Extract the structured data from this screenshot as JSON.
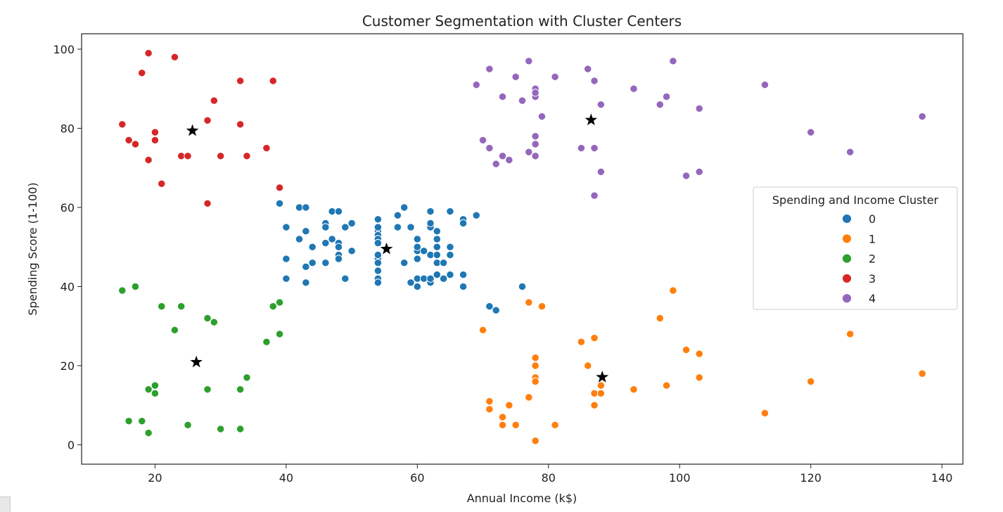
{
  "chart_data": {
    "type": "scatter",
    "title": "Customer Segmentation with Cluster Centers",
    "xlabel": "Annual Income (k$)",
    "ylabel": "Spending Score (1-100)",
    "xlim": [
      8.8,
      143.2
    ],
    "ylim": [
      -4.9,
      103.9
    ],
    "xticks": [
      20,
      40,
      60,
      80,
      100,
      120,
      140
    ],
    "yticks": [
      0,
      20,
      40,
      60,
      80,
      100
    ],
    "grid": false,
    "legend": {
      "title": "Spending and Income Cluster",
      "position": "center-right",
      "entries": [
        "0",
        "1",
        "2",
        "3",
        "4"
      ]
    },
    "series": [
      {
        "name": "0",
        "color": "#1f77b4",
        "points": [
          [
            39,
            61
          ],
          [
            40,
            55
          ],
          [
            40,
            47
          ],
          [
            40,
            42
          ],
          [
            42,
            52
          ],
          [
            42,
            60
          ],
          [
            43,
            60
          ],
          [
            43,
            54
          ],
          [
            43,
            45
          ],
          [
            43,
            41
          ],
          [
            44,
            50
          ],
          [
            44,
            46
          ],
          [
            46,
            51
          ],
          [
            46,
            46
          ],
          [
            46,
            56
          ],
          [
            46,
            55
          ],
          [
            47,
            52
          ],
          [
            47,
            59
          ],
          [
            48,
            51
          ],
          [
            48,
            59
          ],
          [
            48,
            50
          ],
          [
            48,
            48
          ],
          [
            48,
            59
          ],
          [
            48,
            47
          ],
          [
            49,
            55
          ],
          [
            49,
            42
          ],
          [
            50,
            49
          ],
          [
            50,
            56
          ],
          [
            54,
            47
          ],
          [
            54,
            54
          ],
          [
            54,
            53
          ],
          [
            54,
            48
          ],
          [
            54,
            52
          ],
          [
            54,
            42
          ],
          [
            54,
            51
          ],
          [
            54,
            55
          ],
          [
            54,
            41
          ],
          [
            54,
            44
          ],
          [
            54,
            57
          ],
          [
            54,
            46
          ],
          [
            57,
            58
          ],
          [
            57,
            55
          ],
          [
            58,
            60
          ],
          [
            58,
            46
          ],
          [
            59,
            55
          ],
          [
            59,
            41
          ],
          [
            60,
            49
          ],
          [
            60,
            40
          ],
          [
            60,
            42
          ],
          [
            60,
            52
          ],
          [
            60,
            47
          ],
          [
            60,
            50
          ],
          [
            61,
            42
          ],
          [
            61,
            49
          ],
          [
            62,
            41
          ],
          [
            62,
            48
          ],
          [
            62,
            59
          ],
          [
            62,
            55
          ],
          [
            62,
            56
          ],
          [
            62,
            42
          ],
          [
            63,
            50
          ],
          [
            63,
            46
          ],
          [
            63,
            43
          ],
          [
            63,
            48
          ],
          [
            63,
            52
          ],
          [
            63,
            54
          ],
          [
            64,
            42
          ],
          [
            64,
            46
          ],
          [
            65,
            48
          ],
          [
            65,
            50
          ],
          [
            65,
            43
          ],
          [
            65,
            59
          ],
          [
            67,
            43
          ],
          [
            67,
            57
          ],
          [
            67,
            56
          ],
          [
            67,
            40
          ],
          [
            69,
            58
          ],
          [
            71,
            35
          ],
          [
            72,
            34
          ],
          [
            76,
            40
          ]
        ]
      },
      {
        "name": "1",
        "color": "#ff7f0e",
        "points": [
          [
            70,
            29
          ],
          [
            71,
            11
          ],
          [
            71,
            9
          ],
          [
            73,
            5
          ],
          [
            73,
            7
          ],
          [
            74,
            10
          ],
          [
            75,
            5
          ],
          [
            77,
            12
          ],
          [
            77,
            36
          ],
          [
            78,
            22
          ],
          [
            78,
            17
          ],
          [
            78,
            20
          ],
          [
            78,
            16
          ],
          [
            78,
            1
          ],
          [
            78,
            1
          ],
          [
            79,
            35
          ],
          [
            81,
            5
          ],
          [
            85,
            26
          ],
          [
            86,
            20
          ],
          [
            87,
            27
          ],
          [
            87,
            13
          ],
          [
            87,
            10
          ],
          [
            88,
            13
          ],
          [
            88,
            15
          ],
          [
            93,
            14
          ],
          [
            97,
            32
          ],
          [
            98,
            15
          ],
          [
            99,
            39
          ],
          [
            101,
            24
          ],
          [
            103,
            17
          ],
          [
            103,
            23
          ],
          [
            113,
            8
          ],
          [
            120,
            16
          ],
          [
            126,
            28
          ],
          [
            137,
            18
          ]
        ]
      },
      {
        "name": "2",
        "color": "#2ca02c",
        "points": [
          [
            15,
            39
          ],
          [
            16,
            6
          ],
          [
            17,
            40
          ],
          [
            18,
            6
          ],
          [
            19,
            3
          ],
          [
            19,
            14
          ],
          [
            20,
            15
          ],
          [
            20,
            13
          ],
          [
            21,
            35
          ],
          [
            23,
            29
          ],
          [
            24,
            35
          ],
          [
            25,
            5
          ],
          [
            28,
            14
          ],
          [
            28,
            32
          ],
          [
            29,
            31
          ],
          [
            30,
            4
          ],
          [
            33,
            4
          ],
          [
            33,
            14
          ],
          [
            34,
            17
          ],
          [
            37,
            26
          ],
          [
            38,
            35
          ],
          [
            39,
            36
          ],
          [
            39,
            28
          ]
        ]
      },
      {
        "name": "3",
        "color": "#d62728",
        "points": [
          [
            15,
            81
          ],
          [
            16,
            77
          ],
          [
            17,
            76
          ],
          [
            18,
            94
          ],
          [
            19,
            72
          ],
          [
            19,
            99
          ],
          [
            20,
            77
          ],
          [
            20,
            79
          ],
          [
            21,
            66
          ],
          [
            23,
            98
          ],
          [
            24,
            73
          ],
          [
            25,
            73
          ],
          [
            28,
            82
          ],
          [
            28,
            61
          ],
          [
            29,
            87
          ],
          [
            30,
            73
          ],
          [
            33,
            92
          ],
          [
            33,
            81
          ],
          [
            34,
            73
          ],
          [
            37,
            75
          ],
          [
            38,
            92
          ],
          [
            39,
            65
          ]
        ]
      },
      {
        "name": "4",
        "color": "#9467bd",
        "points": [
          [
            69,
            91
          ],
          [
            70,
            77
          ],
          [
            71,
            95
          ],
          [
            71,
            75
          ],
          [
            72,
            71
          ],
          [
            73,
            88
          ],
          [
            73,
            73
          ],
          [
            74,
            72
          ],
          [
            75,
            93
          ],
          [
            76,
            87
          ],
          [
            77,
            97
          ],
          [
            77,
            74
          ],
          [
            78,
            90
          ],
          [
            78,
            88
          ],
          [
            78,
            76
          ],
          [
            78,
            89
          ],
          [
            78,
            78
          ],
          [
            78,
            73
          ],
          [
            79,
            83
          ],
          [
            81,
            93
          ],
          [
            85,
            75
          ],
          [
            86,
            95
          ],
          [
            87,
            63
          ],
          [
            87,
            75
          ],
          [
            87,
            92
          ],
          [
            88,
            86
          ],
          [
            88,
            69
          ],
          [
            93,
            90
          ],
          [
            97,
            86
          ],
          [
            98,
            88
          ],
          [
            99,
            97
          ],
          [
            101,
            68
          ],
          [
            103,
            85
          ],
          [
            103,
            69
          ],
          [
            113,
            91
          ],
          [
            120,
            79
          ],
          [
            126,
            74
          ],
          [
            137,
            83
          ]
        ]
      },
      {
        "name": "",
        "color": "#000000",
        "marker": "star",
        "points": [
          [
            55.3,
            49.5
          ],
          [
            88.2,
            17.1
          ],
          [
            26.3,
            20.9
          ],
          [
            25.7,
            79.4
          ],
          [
            86.5,
            82.1
          ]
        ]
      }
    ]
  }
}
